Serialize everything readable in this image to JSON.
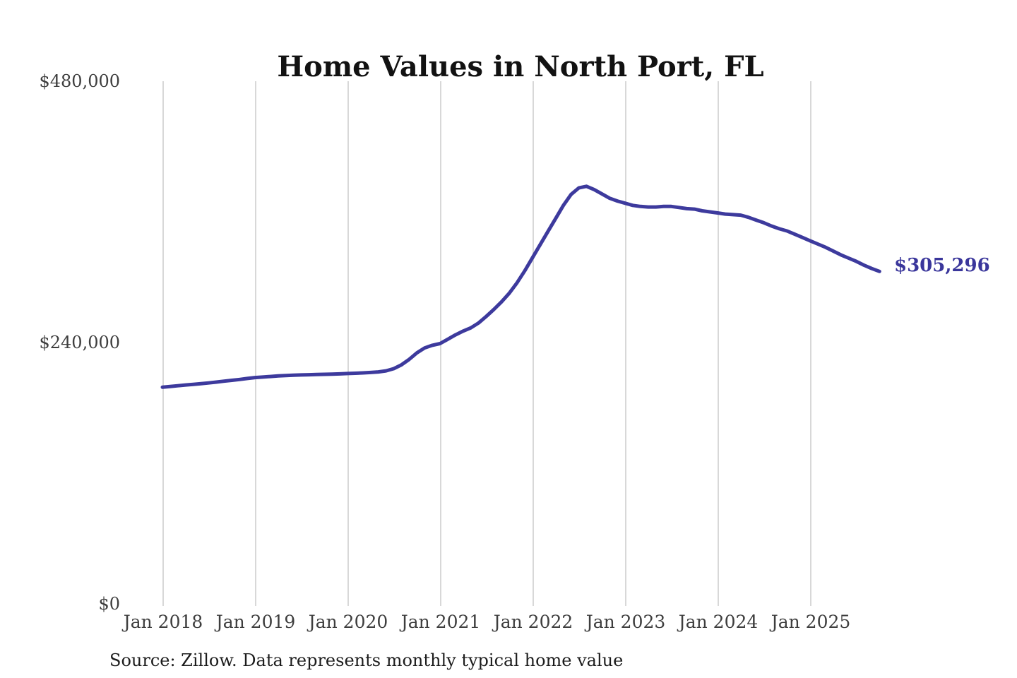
{
  "page": {
    "background": "#ffffff"
  },
  "chart_data": {
    "type": "line",
    "title": "Home Values in North Port, FL",
    "source_note": "Source: Zillow. Data represents monthly typical home value",
    "end_label": "$305,296",
    "end_value": 305296,
    "xlabel": "",
    "ylabel": "",
    "ylim": [
      0,
      480000
    ],
    "grid": "vertical-only",
    "legend": "none",
    "colors": {
      "line": "#3d3a9d",
      "end_label": "#3a369b",
      "gridline": "#cccccc",
      "tick_text": "#3e3e3e",
      "title_text": "#121212",
      "source_text": "#1c1c1c",
      "background": "#ffffff"
    },
    "y_ticks": [
      {
        "label": "$480,000",
        "value": 480000
      },
      {
        "label": "$240,000",
        "value": 240000
      },
      {
        "label": "$0",
        "value": 0
      }
    ],
    "x_ticks": [
      "Jan 2018",
      "Jan 2019",
      "Jan 2020",
      "Jan 2021",
      "Jan 2022",
      "Jan 2023",
      "Jan 2024",
      "Jan 2025"
    ],
    "series": [
      {
        "name": "Monthly typical home value",
        "x_start": "2018-01",
        "x_end": "2025-10",
        "x_interval": "month",
        "values": [
          199000,
          199600,
          200300,
          201000,
          201600,
          202200,
          202900,
          203700,
          204500,
          205300,
          206100,
          207000,
          207800,
          208300,
          208800,
          209300,
          209700,
          210000,
          210200,
          210400,
          210600,
          210800,
          211000,
          211200,
          211500,
          211800,
          212100,
          212500,
          213000,
          214000,
          216000,
          219500,
          224500,
          230500,
          235000,
          237500,
          239000,
          243000,
          247000,
          250500,
          253500,
          258000,
          264000,
          270500,
          277500,
          285500,
          295000,
          306000,
          318000,
          330000,
          342000,
          354000,
          366000,
          376000,
          382000,
          383500,
          380500,
          376500,
          372500,
          370000,
          368000,
          366000,
          365000,
          364500,
          364500,
          365000,
          365000,
          364000,
          363000,
          362500,
          361000,
          360000,
          359000,
          358000,
          357500,
          357000,
          355000,
          352500,
          350000,
          347000,
          344500,
          342500,
          339500,
          336500,
          333500,
          330500,
          327500,
          324000,
          320500,
          317500,
          314500,
          311000,
          308000,
          305296
        ]
      }
    ]
  }
}
